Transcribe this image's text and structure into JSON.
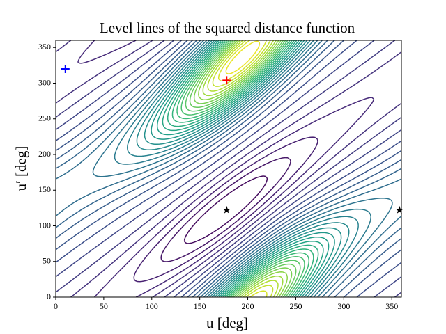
{
  "chart_data": {
    "type": "contour",
    "title": "Level lines of the squared distance function",
    "xlabel": "u [deg]",
    "ylabel": "u′ [deg]",
    "xlim": [
      0,
      360
    ],
    "ylim": [
      0,
      360
    ],
    "xticks": [
      0,
      50,
      100,
      150,
      200,
      250,
      300,
      350
    ],
    "yticks": [
      0,
      50,
      100,
      150,
      200,
      250,
      300,
      350
    ],
    "points": [
      {
        "x": 10,
        "y": 320,
        "marker": "plus",
        "color": "#0000ff"
      },
      {
        "x": 178,
        "y": 304,
        "marker": "plus",
        "color": "#ff0000"
      },
      {
        "x": 178,
        "y": 122,
        "marker": "star",
        "color": "#000000"
      },
      {
        "x": 358,
        "y": 122,
        "marker": "star",
        "color": "#000000"
      }
    ]
  }
}
